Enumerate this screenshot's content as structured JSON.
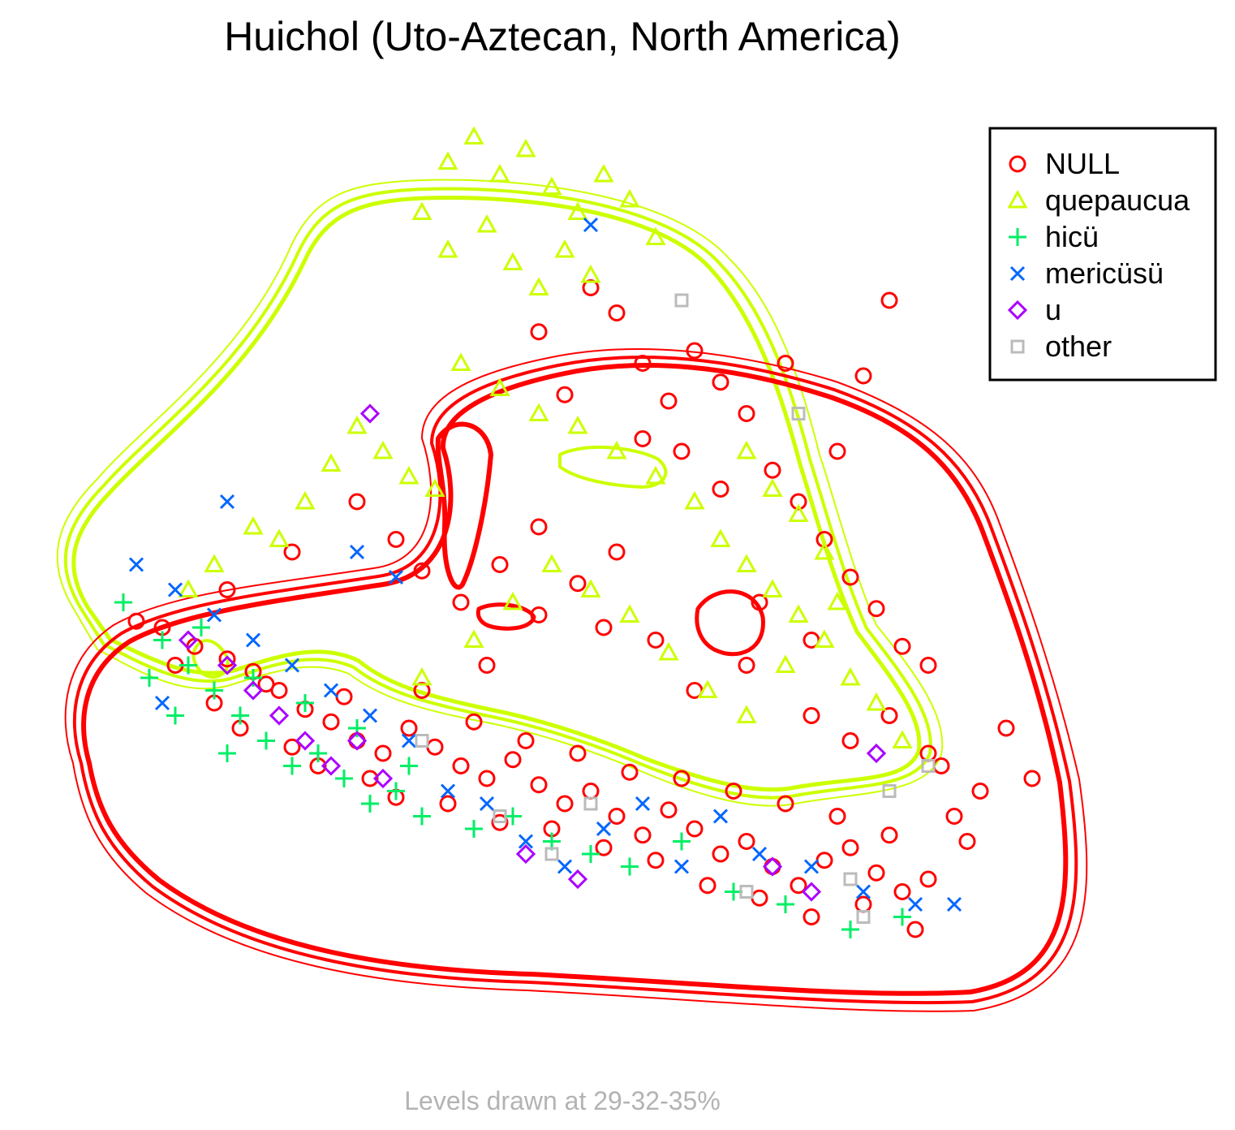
{
  "chart_data": {
    "type": "scatter",
    "title": "Huichol (Uto-Aztecan, North America)",
    "footnote": "Levels drawn at 29-32-35%",
    "xlabel": "",
    "ylabel": "",
    "axes_visible": false,
    "grid": false,
    "legend_position": "top-right",
    "contour_levels_percent": [
      29,
      32,
      35
    ],
    "series": [
      {
        "name": "NULL",
        "marker": "circle",
        "color": "#ff0000",
        "points": [
          [
            -0.64,
            0.09
          ],
          [
            -0.6,
            0.08
          ],
          [
            -0.55,
            0.05
          ],
          [
            -0.5,
            0.03
          ],
          [
            -0.46,
            0.01
          ],
          [
            -0.42,
            -0.02
          ],
          [
            -0.38,
            -0.05
          ],
          [
            -0.34,
            -0.07
          ],
          [
            -0.3,
            -0.1
          ],
          [
            -0.26,
            -0.12
          ],
          [
            -0.22,
            -0.08
          ],
          [
            -0.18,
            -0.11
          ],
          [
            -0.14,
            -0.14
          ],
          [
            -0.1,
            -0.16
          ],
          [
            -0.06,
            -0.13
          ],
          [
            -0.02,
            -0.17
          ],
          [
            0.02,
            -0.2
          ],
          [
            0.06,
            -0.18
          ],
          [
            0.1,
            -0.22
          ],
          [
            0.14,
            -0.25
          ],
          [
            0.18,
            -0.21
          ],
          [
            0.22,
            -0.24
          ],
          [
            0.26,
            -0.28
          ],
          [
            0.3,
            -0.26
          ],
          [
            0.34,
            -0.3
          ],
          [
            0.38,
            -0.33
          ],
          [
            0.42,
            -0.29
          ],
          [
            0.46,
            -0.27
          ],
          [
            0.5,
            -0.31
          ],
          [
            0.54,
            -0.34
          ],
          [
            0.58,
            -0.32
          ],
          [
            0.62,
            -0.22
          ],
          [
            0.66,
            -0.18
          ],
          [
            -0.58,
            0.02
          ],
          [
            -0.52,
            -0.04
          ],
          [
            -0.48,
            -0.08
          ],
          [
            -0.44,
            -0.01
          ],
          [
            -0.4,
            -0.11
          ],
          [
            -0.36,
            -0.14
          ],
          [
            -0.32,
            -0.03
          ],
          [
            -0.28,
            -0.16
          ],
          [
            -0.24,
            -0.19
          ],
          [
            -0.2,
            -0.02
          ],
          [
            -0.16,
            -0.2
          ],
          [
            -0.12,
            -0.07
          ],
          [
            -0.08,
            -0.23
          ],
          [
            -0.04,
            -0.1
          ],
          [
            0.0,
            -0.24
          ],
          [
            0.04,
            -0.12
          ],
          [
            0.08,
            -0.27
          ],
          [
            0.12,
            -0.15
          ],
          [
            0.16,
            -0.29
          ],
          [
            0.2,
            -0.16
          ],
          [
            0.24,
            -0.33
          ],
          [
            0.28,
            -0.18
          ],
          [
            0.32,
            -0.35
          ],
          [
            0.36,
            -0.2
          ],
          [
            0.4,
            -0.38
          ],
          [
            0.44,
            -0.22
          ],
          [
            0.48,
            -0.36
          ],
          [
            0.52,
            -0.25
          ],
          [
            0.56,
            -0.4
          ],
          [
            0.6,
            -0.14
          ],
          [
            0.64,
            -0.26
          ],
          [
            -0.24,
            0.22
          ],
          [
            -0.2,
            0.17
          ],
          [
            -0.14,
            0.12
          ],
          [
            -0.08,
            0.18
          ],
          [
            -0.02,
            0.24
          ],
          [
            0.04,
            0.15
          ],
          [
            0.1,
            0.2
          ],
          [
            0.14,
            0.38
          ],
          [
            0.18,
            0.44
          ],
          [
            0.22,
            0.52
          ],
          [
            0.26,
            0.47
          ],
          [
            0.3,
            0.42
          ],
          [
            0.34,
            0.33
          ],
          [
            0.38,
            0.28
          ],
          [
            0.42,
            0.22
          ],
          [
            0.46,
            0.16
          ],
          [
            0.5,
            0.11
          ],
          [
            0.54,
            0.05
          ],
          [
            0.58,
            0.02
          ],
          [
            0.1,
            0.58
          ],
          [
            0.06,
            0.62
          ],
          [
            -0.02,
            0.55
          ],
          [
            0.02,
            0.45
          ],
          [
            0.14,
            0.5
          ],
          [
            0.2,
            0.36
          ],
          [
            0.26,
            0.3
          ],
          [
            0.32,
            0.12
          ],
          [
            0.4,
            0.06
          ],
          [
            0.44,
            0.36
          ],
          [
            0.48,
            0.48
          ],
          [
            0.52,
            0.6
          ],
          [
            0.36,
            0.5
          ],
          [
            0.3,
            0.02
          ],
          [
            0.22,
            -0.02
          ],
          [
            0.16,
            0.06
          ],
          [
            0.08,
            0.08
          ],
          [
            -0.02,
            0.1
          ],
          [
            -0.1,
            0.02
          ],
          [
            -0.3,
            0.28
          ],
          [
            -0.4,
            0.2
          ],
          [
            -0.5,
            0.14
          ],
          [
            0.4,
            -0.06
          ],
          [
            0.46,
            -0.1
          ],
          [
            0.52,
            -0.06
          ],
          [
            0.58,
            -0.12
          ],
          [
            0.7,
            -0.08
          ],
          [
            0.74,
            -0.16
          ]
        ]
      },
      {
        "name": "quepaucua",
        "marker": "triangle",
        "color": "#ccff00",
        "points": [
          [
            -0.16,
            0.82
          ],
          [
            -0.12,
            0.86
          ],
          [
            -0.08,
            0.8
          ],
          [
            -0.04,
            0.84
          ],
          [
            0.0,
            0.78
          ],
          [
            0.04,
            0.74
          ],
          [
            0.08,
            0.8
          ],
          [
            0.12,
            0.76
          ],
          [
            0.16,
            0.7
          ],
          [
            -0.2,
            0.74
          ],
          [
            -0.16,
            0.68
          ],
          [
            -0.1,
            0.72
          ],
          [
            -0.06,
            0.66
          ],
          [
            -0.02,
            0.62
          ],
          [
            0.02,
            0.68
          ],
          [
            0.06,
            0.64
          ],
          [
            -0.3,
            0.4
          ],
          [
            -0.26,
            0.36
          ],
          [
            -0.22,
            0.32
          ],
          [
            -0.18,
            0.3
          ],
          [
            -0.34,
            0.34
          ],
          [
            -0.38,
            0.28
          ],
          [
            -0.42,
            0.22
          ],
          [
            -0.14,
            0.5
          ],
          [
            -0.08,
            0.46
          ],
          [
            -0.02,
            0.42
          ],
          [
            0.04,
            0.4
          ],
          [
            0.1,
            0.36
          ],
          [
            0.16,
            0.32
          ],
          [
            0.22,
            0.28
          ],
          [
            0.26,
            0.22
          ],
          [
            0.3,
            0.18
          ],
          [
            0.34,
            0.14
          ],
          [
            0.38,
            0.1
          ],
          [
            0.42,
            0.06
          ],
          [
            0.46,
            0.0
          ],
          [
            0.5,
            -0.04
          ],
          [
            0.54,
            -0.1
          ],
          [
            0.3,
            0.36
          ],
          [
            0.34,
            0.3
          ],
          [
            0.38,
            0.26
          ],
          [
            0.42,
            0.2
          ],
          [
            0.44,
            0.12
          ],
          [
            0.36,
            0.02
          ],
          [
            0.3,
            -0.06
          ],
          [
            0.24,
            -0.02
          ],
          [
            0.18,
            0.04
          ],
          [
            0.12,
            0.1
          ],
          [
            0.06,
            0.14
          ],
          [
            0.0,
            0.18
          ],
          [
            -0.06,
            0.12
          ],
          [
            -0.12,
            0.06
          ],
          [
            -0.2,
            0.0
          ],
          [
            -0.52,
            0.18
          ],
          [
            -0.46,
            0.24
          ],
          [
            -0.56,
            0.14
          ]
        ]
      },
      {
        "name": "hicü",
        "marker": "plus",
        "color": "#00ee66",
        "points": [
          [
            -0.66,
            0.12
          ],
          [
            -0.6,
            0.06
          ],
          [
            -0.56,
            0.02
          ],
          [
            -0.52,
            -0.02
          ],
          [
            -0.48,
            -0.06
          ],
          [
            -0.44,
            -0.1
          ],
          [
            -0.4,
            -0.14
          ],
          [
            -0.36,
            -0.12
          ],
          [
            -0.32,
            -0.16
          ],
          [
            -0.28,
            -0.2
          ],
          [
            -0.24,
            -0.18
          ],
          [
            -0.2,
            -0.22
          ],
          [
            -0.12,
            -0.24
          ],
          [
            -0.06,
            -0.22
          ],
          [
            0.0,
            -0.26
          ],
          [
            0.06,
            -0.28
          ],
          [
            0.12,
            -0.3
          ],
          [
            0.2,
            -0.26
          ],
          [
            0.28,
            -0.34
          ],
          [
            0.36,
            -0.36
          ],
          [
            0.46,
            -0.4
          ],
          [
            0.54,
            -0.38
          ],
          [
            -0.54,
            0.08
          ],
          [
            -0.46,
            0.0
          ],
          [
            -0.38,
            -0.04
          ],
          [
            -0.3,
            -0.08
          ],
          [
            -0.22,
            -0.14
          ],
          [
            -0.62,
            0.0
          ],
          [
            -0.58,
            -0.06
          ],
          [
            -0.5,
            -0.12
          ]
        ]
      },
      {
        "name": "mericüsü",
        "marker": "x",
        "color": "#0066ff",
        "points": [
          [
            -0.64,
            0.18
          ],
          [
            -0.58,
            0.14
          ],
          [
            -0.52,
            0.1
          ],
          [
            -0.46,
            0.06
          ],
          [
            -0.4,
            0.02
          ],
          [
            -0.34,
            -0.02
          ],
          [
            -0.28,
            -0.06
          ],
          [
            -0.22,
            -0.1
          ],
          [
            -0.16,
            -0.18
          ],
          [
            -0.1,
            -0.2
          ],
          [
            -0.04,
            -0.26
          ],
          [
            0.02,
            -0.3
          ],
          [
            0.08,
            -0.24
          ],
          [
            0.14,
            -0.2
          ],
          [
            0.2,
            -0.3
          ],
          [
            0.26,
            -0.22
          ],
          [
            0.32,
            -0.28
          ],
          [
            0.4,
            -0.3
          ],
          [
            0.48,
            -0.34
          ],
          [
            0.56,
            -0.36
          ],
          [
            0.62,
            -0.36
          ],
          [
            -0.3,
            0.2
          ],
          [
            -0.24,
            0.16
          ],
          [
            0.06,
            0.72
          ],
          [
            -0.5,
            0.28
          ],
          [
            -0.6,
            -0.04
          ]
        ]
      },
      {
        "name": "u",
        "marker": "diamond",
        "color": "#aa00ff",
        "points": [
          [
            -0.56,
            0.06
          ],
          [
            -0.5,
            0.02
          ],
          [
            -0.46,
            -0.02
          ],
          [
            -0.42,
            -0.06
          ],
          [
            -0.38,
            -0.1
          ],
          [
            -0.34,
            -0.14
          ],
          [
            -0.3,
            -0.1
          ],
          [
            -0.26,
            -0.16
          ],
          [
            -0.04,
            -0.28
          ],
          [
            0.04,
            -0.32
          ],
          [
            0.34,
            -0.3
          ],
          [
            0.4,
            -0.34
          ],
          [
            0.5,
            -0.12
          ],
          [
            -0.28,
            0.42
          ]
        ]
      },
      {
        "name": "other",
        "marker": "square",
        "color": "#bbbbbb",
        "points": [
          [
            -0.2,
            -0.1
          ],
          [
            -0.08,
            -0.22
          ],
          [
            0.0,
            -0.28
          ],
          [
            0.06,
            -0.2
          ],
          [
            0.2,
            0.6
          ],
          [
            0.38,
            0.42
          ],
          [
            0.3,
            -0.34
          ],
          [
            0.46,
            -0.32
          ],
          [
            0.52,
            -0.18
          ],
          [
            0.58,
            -0.14
          ],
          [
            0.48,
            -0.38
          ]
        ]
      }
    ]
  }
}
